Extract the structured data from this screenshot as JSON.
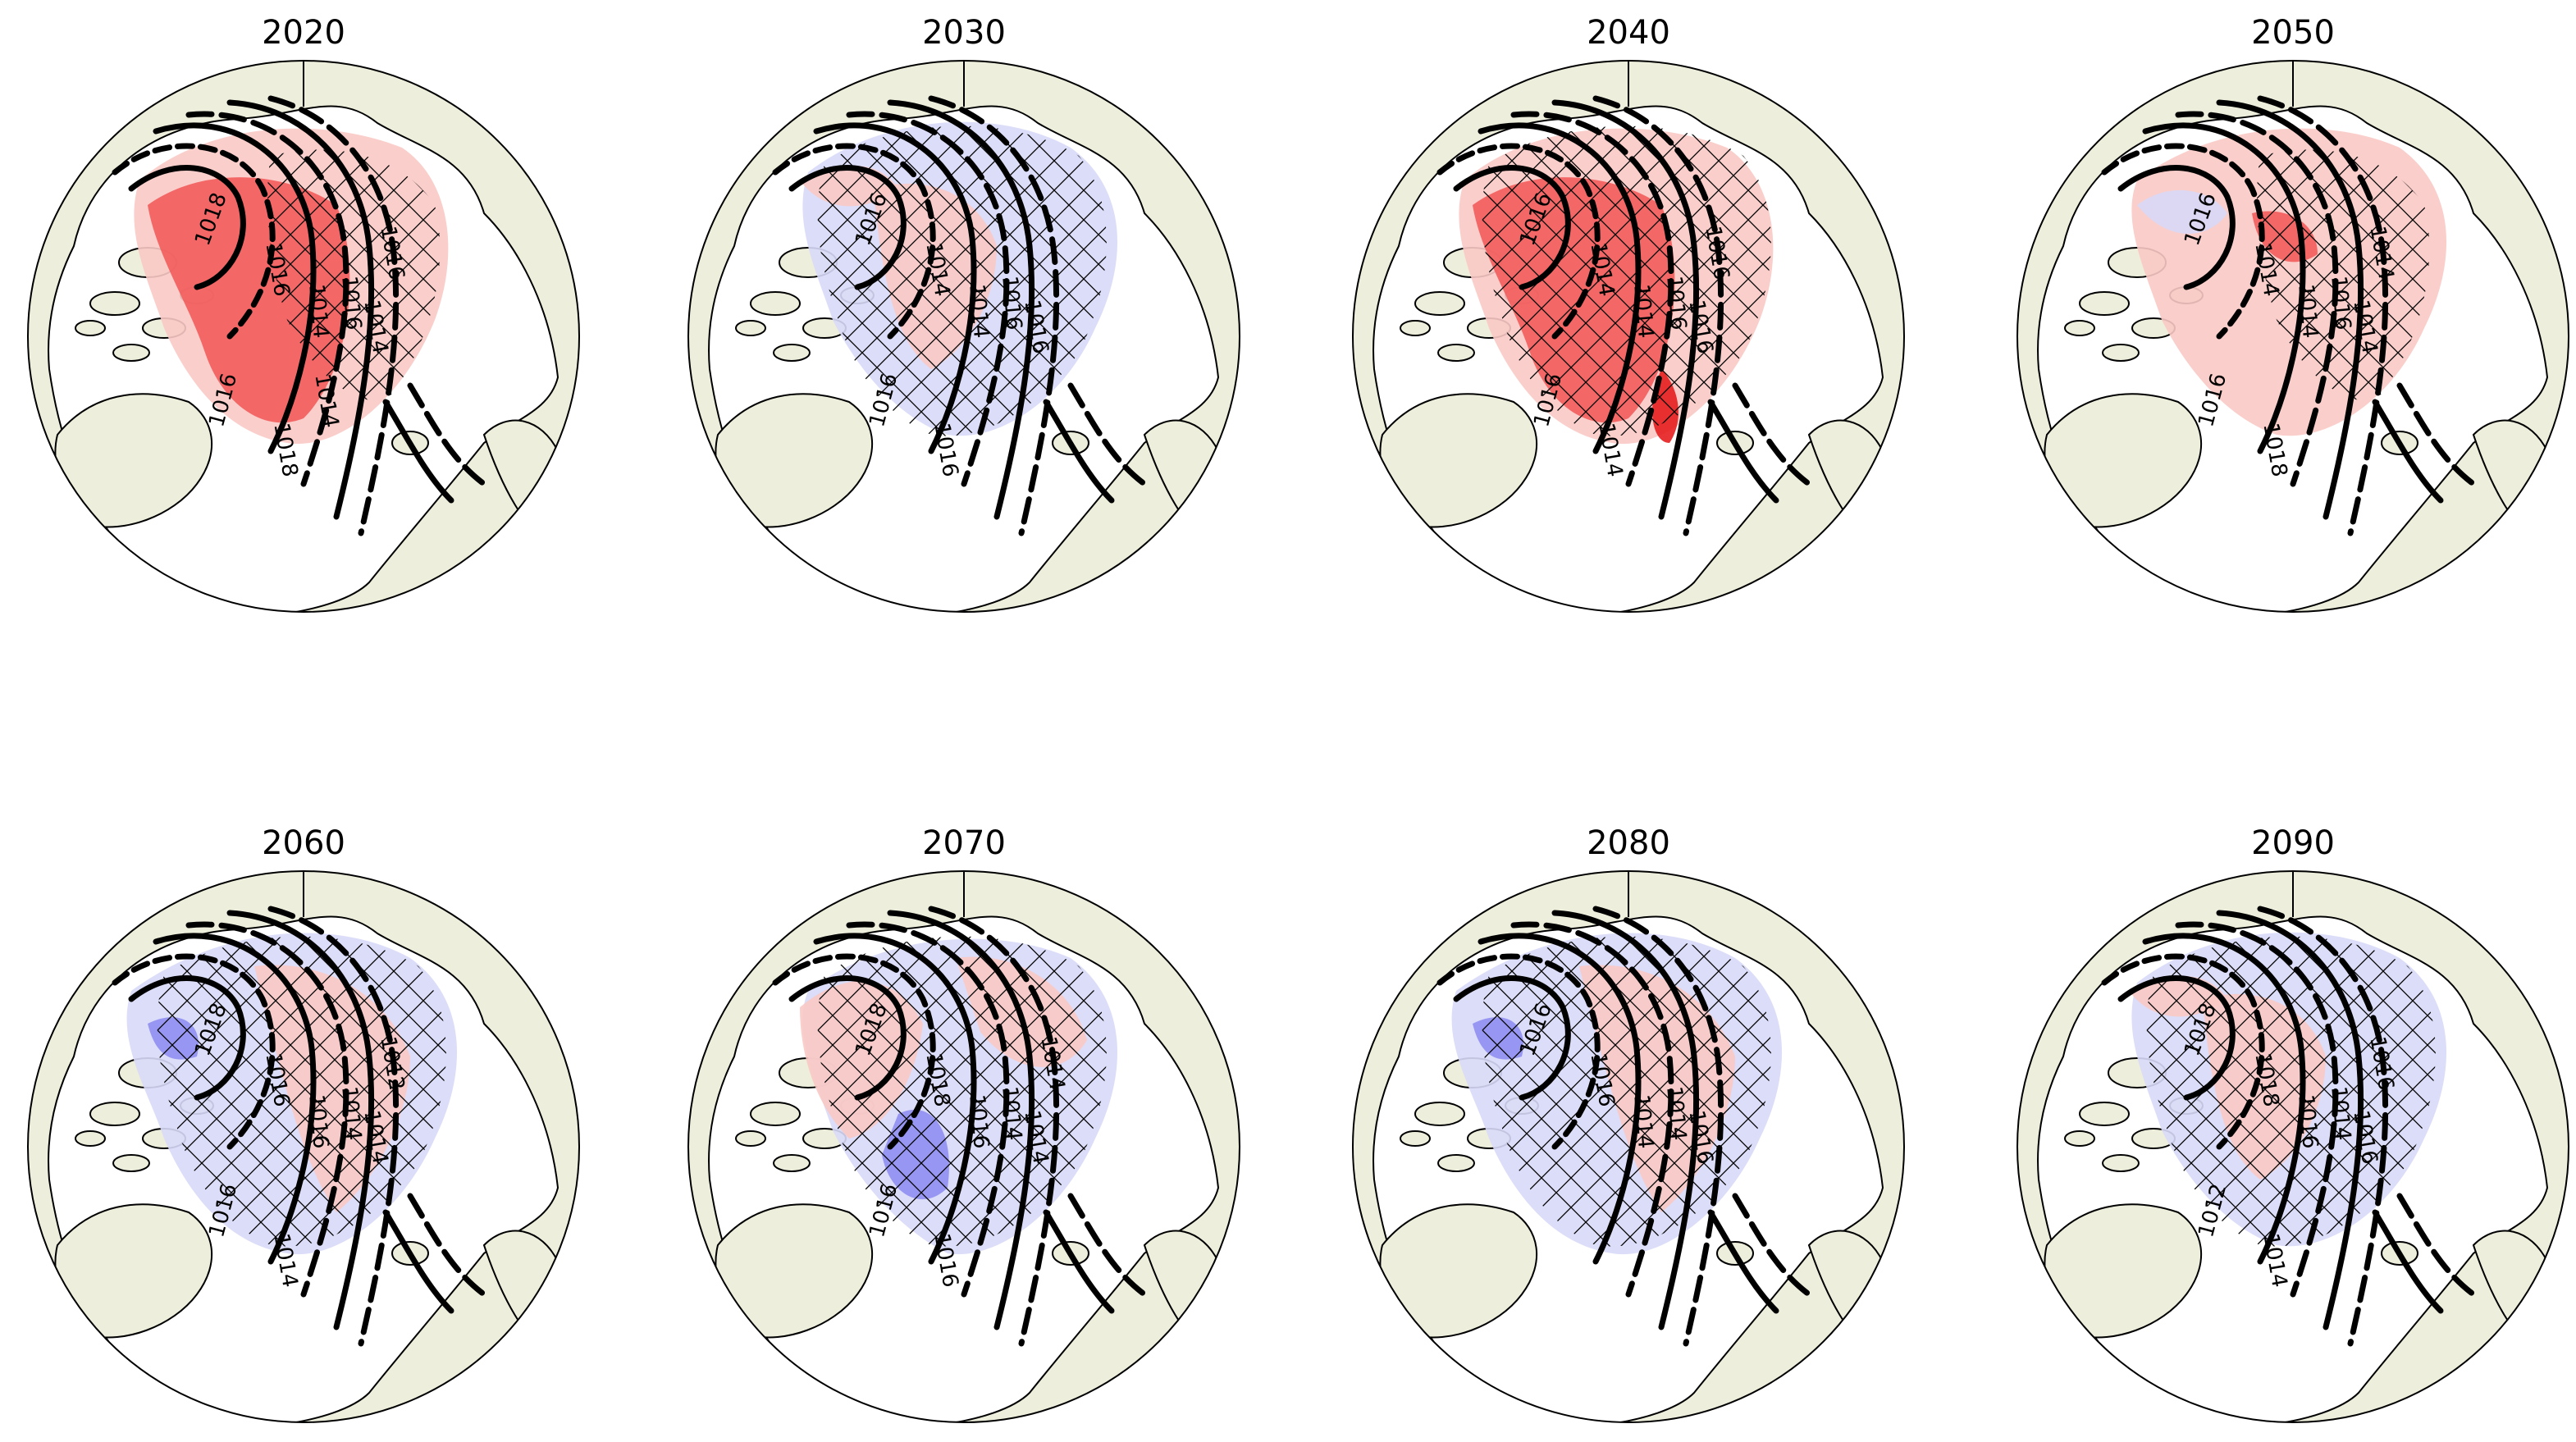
{
  "figure": {
    "panels": [
      {
        "title": "2020",
        "labels": [
          "1018",
          "1016",
          "1014",
          "1016",
          "1014",
          "1016",
          "1018",
          "1016",
          "1014"
        ],
        "anomaly": "red",
        "hatch": "east"
      },
      {
        "title": "2030",
        "labels": [
          "1016",
          "1014",
          "1014",
          "1016",
          "1016",
          "1016",
          "1016"
        ],
        "anomaly": "mixed-light",
        "hatch": "wide"
      },
      {
        "title": "2040",
        "labels": [
          "1016",
          "1014",
          "1014",
          "1016",
          "1016",
          "1016",
          "1014",
          "1016"
        ],
        "anomaly": "red-strong",
        "hatch": "wide"
      },
      {
        "title": "2050",
        "labels": [
          "1016",
          "1014",
          "1014",
          "1016",
          "1014",
          "1016",
          "1018",
          "1014"
        ],
        "anomaly": "red-light",
        "hatch": "east"
      },
      {
        "title": "2060",
        "labels": [
          "1018",
          "1016",
          "1016",
          "1014",
          "1014",
          "1016",
          "1014",
          "1012"
        ],
        "anomaly": "mixed-blue",
        "hatch": "wide"
      },
      {
        "title": "2070",
        "labels": [
          "1018",
          "1018",
          "1016",
          "1014",
          "1014",
          "1016",
          "1016",
          "1014"
        ],
        "anomaly": "mixed",
        "hatch": "wide"
      },
      {
        "title": "2080",
        "labels": [
          "1016",
          "1016",
          "1014",
          "1014",
          "1016"
        ],
        "anomaly": "mixed-blue",
        "hatch": "wide"
      },
      {
        "title": "2090",
        "labels": [
          "1018",
          "1018",
          "1016",
          "1014",
          "1016",
          "1012",
          "1014",
          "1016"
        ],
        "anomaly": "mixed-light",
        "hatch": "wide"
      }
    ]
  },
  "colors": {
    "land": "#eeeedc",
    "ocean": "#ffffff",
    "red": "#f25c5c",
    "red_light": "#f9c9c4",
    "blue": "#8f8ff2",
    "blue_light": "#d8d9f7",
    "contour": "#000000"
  }
}
